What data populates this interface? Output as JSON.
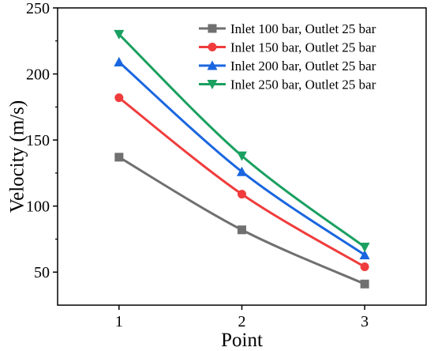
{
  "chart_data": {
    "type": "line",
    "xlabel": "Point",
    "ylabel": "Velocity (m/s)",
    "x": [
      1,
      2,
      3
    ],
    "xlim": [
      0.5,
      3.5
    ],
    "ylim": [
      25,
      250
    ],
    "xticks": [
      1,
      2,
      3
    ],
    "yticks": [
      50,
      100,
      150,
      200,
      250
    ],
    "legend_position": "top-right",
    "grid": false,
    "series": [
      {
        "name": "Inlet 100 bar, Outlet 25 bar",
        "values": [
          137,
          82,
          41
        ],
        "color": "#707070",
        "marker": "square"
      },
      {
        "name": "Inlet 150 bar, Outlet 25 bar",
        "values": [
          182,
          109,
          54
        ],
        "color": "#f03c3c",
        "marker": "circle"
      },
      {
        "name": "Inlet 200 bar, Outlet 25 bar",
        "values": [
          209,
          126,
          63
        ],
        "color": "#1a66e0",
        "marker": "triangle-up"
      },
      {
        "name": "Inlet 250 bar, Outlet 25 bar",
        "values": [
          230,
          138,
          69
        ],
        "color": "#1aa060",
        "marker": "triangle-down"
      }
    ]
  }
}
